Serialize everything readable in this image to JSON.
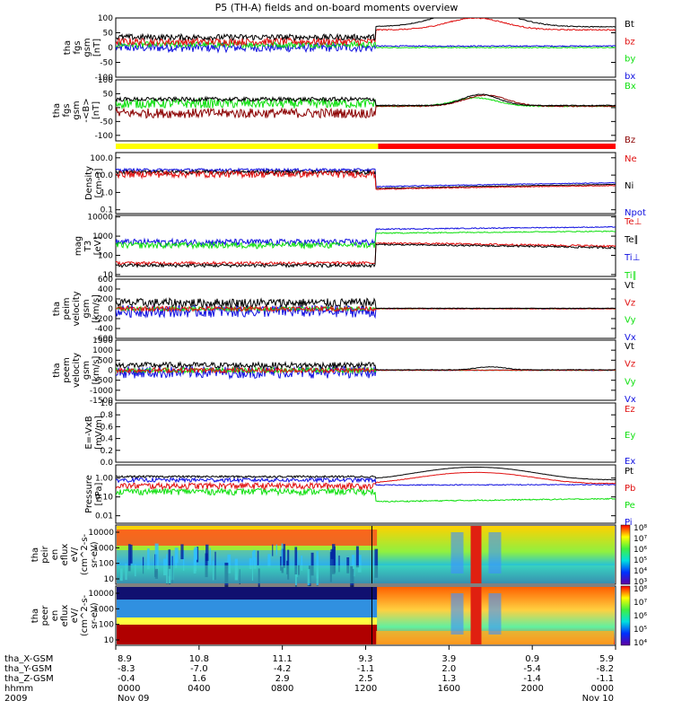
{
  "title": "P5 (TH-A) fields and on-board moments overview",
  "colors": {
    "black": "#000000",
    "red": "#e01010",
    "green": "#10e010",
    "blue": "#1010e0",
    "darkred": "#8b0000",
    "yellow": "#ffff00",
    "barred": "#ff0000"
  },
  "chart_data": [
    {
      "type": "line",
      "panel": "fgs",
      "ylabel": [
        "tha",
        "fgs",
        "gsm",
        "[nT]"
      ],
      "yticks": [
        -100,
        -50,
        0,
        50,
        100
      ],
      "ylim": [
        -100,
        100
      ],
      "legend": [
        "Bt",
        "bz",
        "by",
        "bx"
      ],
      "legend_colors": [
        "#000000",
        "#e01010",
        "#10e010",
        "#1010e0"
      ]
    },
    {
      "type": "line",
      "panel": "fgs-dsl",
      "ylabel": [
        "tha",
        "fgs",
        "gsm",
        "-<B>",
        "[nT]"
      ],
      "yticks": [
        -100,
        -50,
        0,
        50,
        100
      ],
      "ylim": [
        -120,
        100
      ],
      "legend": [
        "Bx",
        "Bz"
      ],
      "legend_colors": [
        "#10e010",
        "#8b0000"
      ]
    },
    {
      "type": "bar",
      "panel": "mode",
      "segments": [
        {
          "start_hour": 0,
          "end_hour": 12.6,
          "color": "yellow"
        },
        {
          "start_hour": 12.6,
          "end_hour": 24,
          "color": "red"
        }
      ]
    },
    {
      "type": "line",
      "panel": "density",
      "ylabel": [
        "Density",
        "[cm-3]"
      ],
      "yticks": [
        "0.1",
        "1.0",
        "10.0",
        "100.0"
      ],
      "ylim": [
        0.06,
        200
      ],
      "log": true,
      "legend": [
        "Ne",
        "Ni",
        "Npot"
      ],
      "legend_colors": [
        "#e01010",
        "#000000",
        "#1010e0"
      ]
    },
    {
      "type": "line",
      "panel": "temperature",
      "ylabel": [
        "mag",
        "T3",
        "[eV]"
      ],
      "yticks": [
        "10",
        "100",
        "1000",
        "10000"
      ],
      "ylim": [
        8,
        12000
      ],
      "log": true,
      "legend": [
        "Te⊥",
        "Te∥",
        "Ti⊥",
        "Ti∥"
      ],
      "legend_colors": [
        "#e01010",
        "#000000",
        "#1010e0",
        "#10e010"
      ]
    },
    {
      "type": "line",
      "panel": "peim-velocity",
      "ylabel": [
        "tha",
        "peim",
        "velocity",
        "gsm",
        "[km/s]"
      ],
      "yticks": [
        -600,
        -400,
        -200,
        0,
        200,
        400,
        600
      ],
      "ylim": [
        -600,
        600
      ],
      "legend": [
        "Vt",
        "Vz",
        "Vy",
        "Vx"
      ],
      "legend_colors": [
        "#000000",
        "#e01010",
        "#10e010",
        "#1010e0"
      ]
    },
    {
      "type": "line",
      "panel": "peem-velocity",
      "ylabel": [
        "tha",
        "peem",
        "velocity",
        "gsm",
        "[km/s]"
      ],
      "yticks": [
        -1500,
        -1000,
        -500,
        0,
        500,
        1000,
        1500
      ],
      "ylim": [
        -1500,
        1500
      ],
      "legend": [
        "Vt",
        "Vz",
        "Vy",
        "Vx"
      ],
      "legend_colors": [
        "#000000",
        "#e01010",
        "#10e010",
        "#1010e0"
      ]
    },
    {
      "type": "line",
      "panel": "efield",
      "ylabel": [
        "E=-VxB",
        "[mV/m]"
      ],
      "yticks": [
        "0.0",
        "0.2",
        "0.4",
        "0.6",
        "0.8",
        "1.0"
      ],
      "ylim": [
        0,
        1
      ],
      "legend": [
        "Ez",
        "Ey",
        "Ex"
      ],
      "legend_colors": [
        "#e01010",
        "#10e010",
        "#1010e0"
      ]
    },
    {
      "type": "line",
      "panel": "pressure",
      "ylabel": [
        "Pressure",
        "[nPa]"
      ],
      "yticks": [
        "0.01",
        "0.10",
        "1.00"
      ],
      "ylim": [
        0.004,
        5
      ],
      "log": true,
      "legend": [
        "Pt",
        "Pb",
        "Pe",
        "Pi"
      ],
      "legend_colors": [
        "#000000",
        "#e01010",
        "#10e010",
        "#1010e0"
      ]
    },
    {
      "type": "heatmap",
      "panel": "peir-eflux",
      "ylabel": [
        "tha",
        "peir",
        "en",
        "eflux",
        "eV/",
        "(cm^2-s-",
        "sr-eV)"
      ],
      "yticks": [
        "10",
        "100",
        "1000",
        "10000"
      ],
      "colorbar_ticks": [
        "10³",
        "10⁴",
        "10⁵",
        "10⁶",
        "10⁷",
        "10⁸"
      ]
    },
    {
      "type": "heatmap",
      "panel": "peer-eflux",
      "ylabel": [
        "tha",
        "peer",
        "en",
        "eflux",
        "eV/",
        "(cm^2-s-",
        "sr-eV)"
      ],
      "yticks": [
        "10",
        "100",
        "1000",
        "10000"
      ],
      "colorbar_ticks": [
        "10⁴",
        "10⁵",
        "10⁶",
        "10⁷",
        "10⁸"
      ]
    }
  ],
  "xaxis": {
    "row_labels": [
      "tha_X-GSM",
      "tha_Y-GSM",
      "tha_Z-GSM",
      "hhmm",
      "2009"
    ],
    "columns": [
      {
        "values": [
          "8.9",
          "-8.3",
          "-0.4",
          "0000",
          "Nov 09"
        ]
      },
      {
        "values": [
          "10.8",
          "-7.0",
          "1.6",
          "0400",
          ""
        ]
      },
      {
        "values": [
          "11.1",
          "-4.2",
          "2.9",
          "0800",
          ""
        ]
      },
      {
        "values": [
          "9.3",
          "-1.1",
          "2.5",
          "1200",
          ""
        ]
      },
      {
        "values": [
          "3.9",
          "2.0",
          "1.3",
          "1600",
          ""
        ]
      },
      {
        "values": [
          "0.9",
          "-5.4",
          "-1.4",
          "2000",
          ""
        ]
      },
      {
        "values": [
          "5.9",
          "-8.2",
          "-1.1",
          "0000",
          "Nov 10"
        ]
      }
    ]
  }
}
